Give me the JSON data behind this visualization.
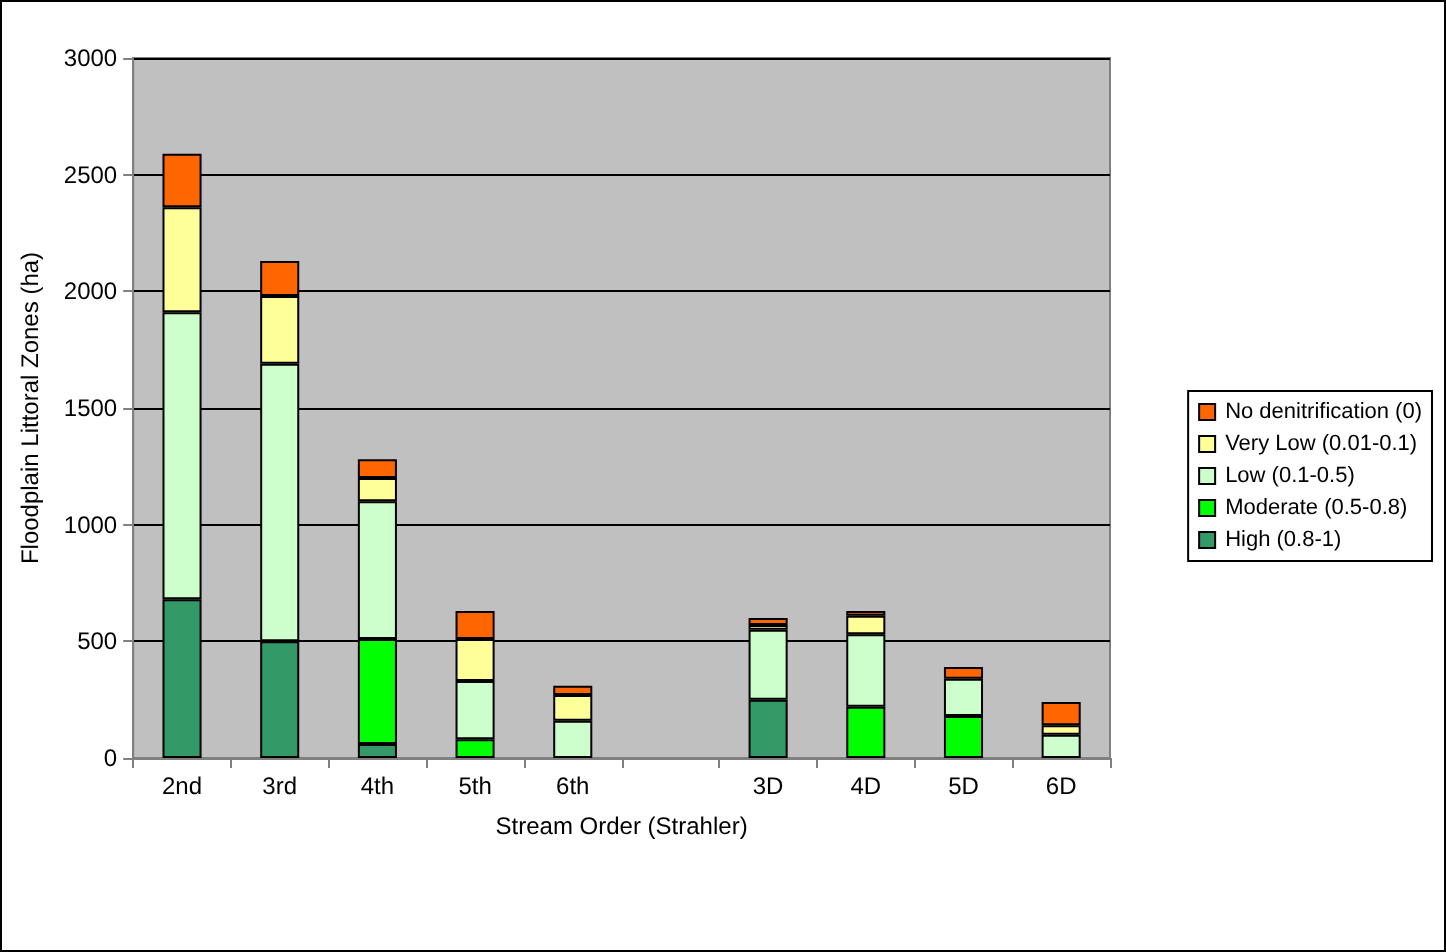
{
  "chart_data": {
    "type": "bar",
    "stacked": true,
    "xlabel": "Stream Order (Strahler)",
    "ylabel": "Floodplain Littoral Zones (ha)",
    "categories": [
      "2nd",
      "3rd",
      "4th",
      "5th",
      "6th",
      null,
      "3D",
      "4D",
      "5D",
      "6D"
    ],
    "series": [
      {
        "name": "High (0.8-1)",
        "color": "#339966",
        "values": [
          680,
          500,
          60,
          null,
          null,
          null,
          250,
          null,
          null,
          null
        ]
      },
      {
        "name": "Moderate (0.5-0.8)",
        "color": "#00ff00",
        "values": [
          null,
          null,
          450,
          80,
          null,
          null,
          null,
          220,
          180,
          null
        ]
      },
      {
        "name": "Low (0.1-0.5)",
        "color": "#ccffcc",
        "values": [
          1230,
          1190,
          590,
          250,
          160,
          null,
          300,
          310,
          160,
          100
        ]
      },
      {
        "name": "Very Low (0.01-0.1)",
        "color": "#ffff99",
        "values": [
          450,
          290,
          100,
          180,
          110,
          null,
          20,
          80,
          null,
          40
        ]
      },
      {
        "name": "No denitrification (0)",
        "color": "#ff6600",
        "values": [
          230,
          150,
          80,
          120,
          40,
          null,
          30,
          20,
          50,
          100
        ]
      }
    ],
    "ylim": [
      0,
      3000
    ],
    "yticks": [
      0,
      500,
      1000,
      1500,
      2000,
      2500,
      3000
    ],
    "grid": "y",
    "legend": "right"
  }
}
